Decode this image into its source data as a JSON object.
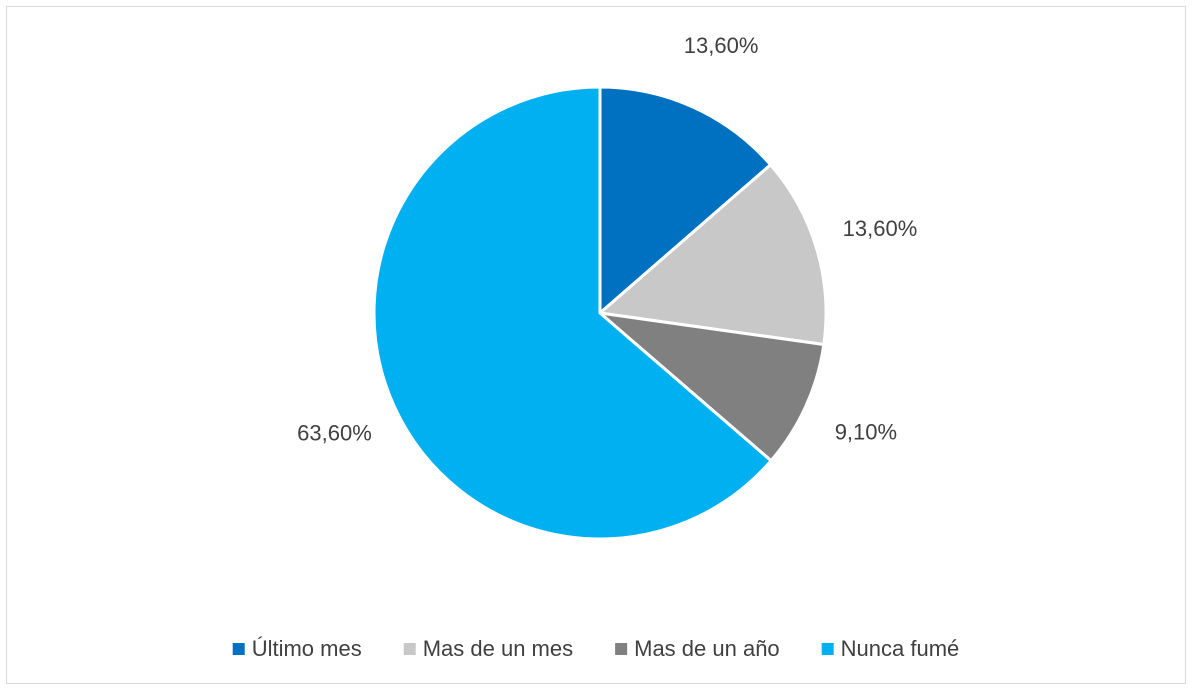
{
  "chart_data": {
    "type": "pie",
    "categories": [
      "Último mes",
      "Mas de un mes",
      "Mas de un año",
      "Nunca fumé"
    ],
    "values": [
      13.6,
      13.6,
      9.1,
      63.6
    ],
    "value_labels": [
      "13,60%",
      "13,60%",
      "9,10%",
      "63,60%"
    ],
    "colors": [
      "#0070c0",
      "#c8c8c8",
      "#808080",
      "#00b0f0"
    ],
    "legend": "bottom"
  }
}
